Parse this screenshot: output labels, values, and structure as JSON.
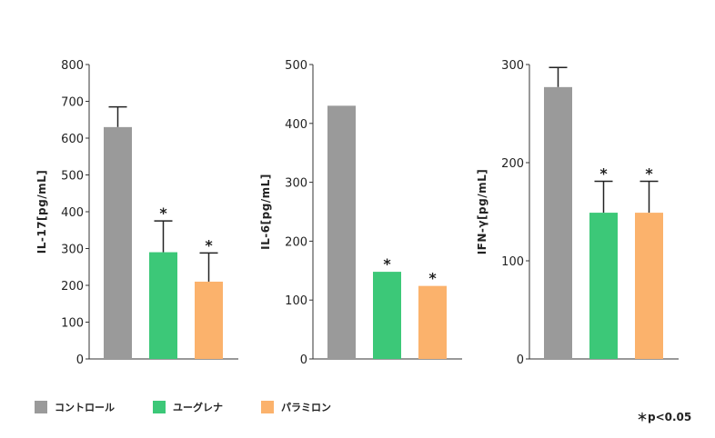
{
  "colors": {
    "control": "#9a9a9a",
    "euglena": "#3cc878",
    "paramylon": "#fbb26c",
    "axis": "#333333"
  },
  "legend": {
    "items": [
      {
        "label": "コントロール",
        "color": "#9a9a9a"
      },
      {
        "label": "ユーグレナ",
        "color": "#3cc878"
      },
      {
        "label": "パラミロン",
        "color": "#fbb26c"
      }
    ]
  },
  "note": "＊p<0.05",
  "chart_data": [
    {
      "type": "bar",
      "categories": [
        "コントロール",
        "ユーグレナ",
        "パラミロン"
      ],
      "values": [
        630,
        290,
        210
      ],
      "error_upper": [
        685,
        375,
        288
      ],
      "significant": [
        false,
        true,
        true
      ],
      "ylabel": "IL-17[pg/mL]",
      "ylim": [
        0,
        800
      ],
      "yticks": [
        0,
        100,
        200,
        300,
        400,
        500,
        600,
        700,
        800
      ],
      "grid": false
    },
    {
      "type": "bar",
      "categories": [
        "コントロール",
        "ユーグレナ",
        "パラミロン"
      ],
      "values": [
        430,
        148,
        124
      ],
      "error_upper": [
        430,
        148,
        124
      ],
      "significant": [
        false,
        true,
        true
      ],
      "ylabel": "IL-6[pg/mL]",
      "ylim": [
        0,
        500
      ],
      "yticks": [
        0,
        100,
        200,
        300,
        400,
        500
      ],
      "grid": false
    },
    {
      "type": "bar",
      "categories": [
        "コントロール",
        "ユーグレナ",
        "パラミロン"
      ],
      "values": [
        277,
        149,
        149
      ],
      "error_upper": [
        297,
        181,
        181
      ],
      "significant": [
        false,
        true,
        true
      ],
      "ylabel": "IFN-γ[pg/mL]",
      "ylim": [
        0,
        300
      ],
      "yticks": [
        0,
        100,
        200,
        300
      ],
      "grid": false
    }
  ]
}
